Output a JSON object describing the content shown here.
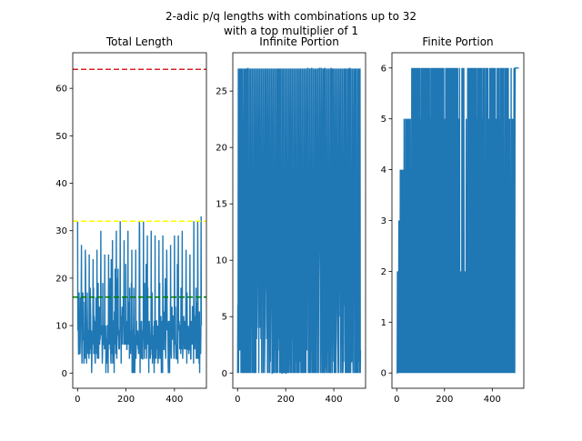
{
  "figure": {
    "title_line1": "2-adic p/q lengths with combinations up to 32",
    "title_line2": "with a top multiplier of 1"
  },
  "colors": {
    "series": "#1f77b4",
    "ref_red": "#d62728",
    "ref_yellow": "#ffff00",
    "ref_green": "#008000",
    "axis": "#000000"
  },
  "chart_data": [
    {
      "type": "line",
      "title": "Total Length",
      "xlabel": "",
      "ylabel": "",
      "xlim": [
        -20,
        532
      ],
      "ylim": [
        -3.2,
        67.5
      ],
      "xticks": [
        0,
        200,
        400
      ],
      "yticks": [
        0,
        10,
        20,
        30,
        40,
        50,
        60
      ],
      "n_points": 512,
      "x_range": [
        0,
        511
      ],
      "y_range": [
        0,
        33
      ],
      "reference_lines": [
        {
          "y": 64,
          "color": "red",
          "style": "dashed"
        },
        {
          "y": 32,
          "color": "yellow",
          "style": "dashed"
        },
        {
          "y": 16,
          "color": "green",
          "style": "dashed"
        }
      ],
      "grid": false,
      "legend": "none"
    },
    {
      "type": "line",
      "title": "Infinite Portion",
      "xlabel": "",
      "ylabel": "",
      "xlim": [
        -20,
        532
      ],
      "ylim": [
        -1.35,
        28.4
      ],
      "xticks": [
        0,
        200,
        400
      ],
      "yticks": [
        0,
        5,
        10,
        15,
        20,
        25
      ],
      "n_points": 512,
      "x_range": [
        0,
        511
      ],
      "y_range": [
        0,
        27
      ],
      "common_levels": [
        0,
        1,
        2,
        3,
        4,
        5,
        6,
        7,
        8,
        9,
        10,
        11,
        13,
        15,
        17,
        19,
        27
      ],
      "grid": false,
      "legend": "none"
    },
    {
      "type": "line",
      "title": "Finite Portion",
      "xlabel": "",
      "ylabel": "",
      "xlim": [
        -20,
        532
      ],
      "ylim": [
        -0.3,
        6.3
      ],
      "xticks": [
        0,
        200,
        400
      ],
      "yticks": [
        0,
        1,
        2,
        3,
        4,
        5,
        6
      ],
      "n_points": 512,
      "x_range": [
        0,
        511
      ],
      "y_range": [
        0,
        6
      ],
      "levels": [
        0,
        1,
        2,
        3,
        4,
        5,
        6
      ],
      "grid": false,
      "legend": "none"
    }
  ]
}
